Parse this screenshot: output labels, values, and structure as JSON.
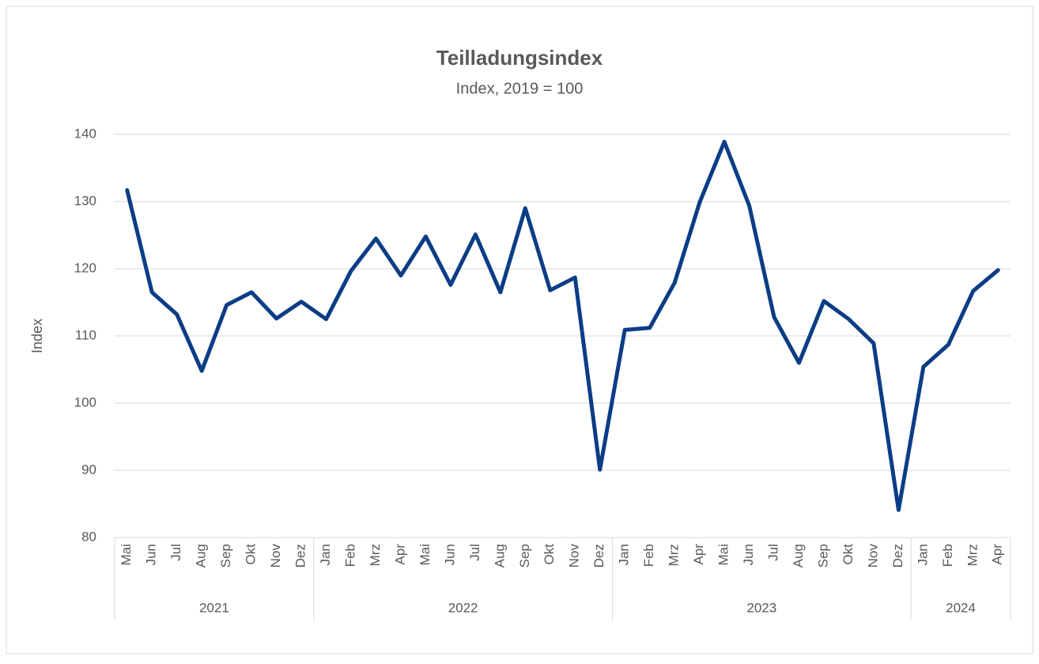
{
  "chart_data": {
    "type": "line",
    "title": "Teilladungsindex",
    "subtitle": "Index, 2019 = 100",
    "y_label": "Index",
    "categories": [
      "Mai",
      "Jun",
      "Jul",
      "Aug",
      "Sep",
      "Okt",
      "Nov",
      "Dez",
      "Jan",
      "Feb",
      "Mrz",
      "Apr",
      "Mai",
      "Jun",
      "Jul",
      "Aug",
      "Sep",
      "Okt",
      "Nov",
      "Dez",
      "Jan",
      "Feb",
      "Mrz",
      "Apr",
      "Mai",
      "Jun",
      "Jul",
      "Aug",
      "Sep",
      "Okt",
      "Nov",
      "Dez",
      "Jan",
      "Feb",
      "Mrz",
      "Apr"
    ],
    "category_groups": [
      {
        "label": "2021",
        "span": 8
      },
      {
        "label": "2022",
        "span": 12
      },
      {
        "label": "2023",
        "span": 12
      },
      {
        "label": "2024",
        "span": 4
      }
    ],
    "series": [
      {
        "name": "Teilladungsindex",
        "color": "#0b3d86",
        "values": [
          131.7,
          116.5,
          113.2,
          104.8,
          114.6,
          116.5,
          112.6,
          115.1,
          112.5,
          119.7,
          124.5,
          119.0,
          124.8,
          117.6,
          125.1,
          116.5,
          129.0,
          116.8,
          118.7,
          90.1,
          110.9,
          111.2,
          117.9,
          129.8,
          138.9,
          129.4,
          112.8,
          106.0,
          115.2,
          112.5,
          108.9,
          84.1,
          105.4,
          108.7,
          116.7,
          119.8
        ]
      }
    ],
    "ylim": [
      80,
      140
    ],
    "yticks": [
      80,
      90,
      100,
      110,
      120,
      130,
      140
    ],
    "grid": true
  }
}
